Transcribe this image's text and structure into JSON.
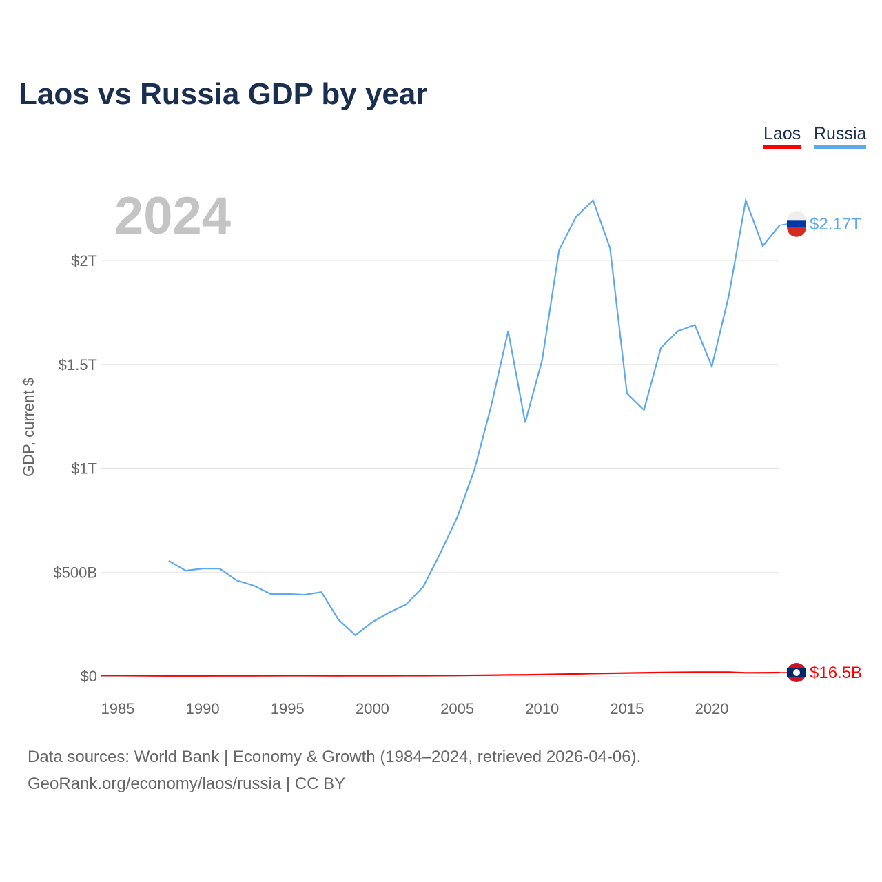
{
  "chart_data": {
    "type": "line",
    "title": "Laos vs Russia GDP by year",
    "year_label": "2024",
    "ylabel": "GDP, current $",
    "xlabel": "",
    "xlim": [
      1984,
      2024
    ],
    "ylim": [
      0,
      2.3
    ],
    "y_unit": "trillion USD",
    "x_ticks": [
      1985,
      1990,
      1995,
      2000,
      2005,
      2010,
      2015,
      2020
    ],
    "y_ticks": [
      {
        "value": 0,
        "label": "$0"
      },
      {
        "value": 0.5,
        "label": "$500B"
      },
      {
        "value": 1,
        "label": "$1T"
      },
      {
        "value": 1.5,
        "label": "$1.5T"
      },
      {
        "value": 2,
        "label": "$2T"
      }
    ],
    "grid": true,
    "legend": {
      "placement": "top-right",
      "items": [
        {
          "name": "Laos",
          "color": "#ff0000"
        },
        {
          "name": "Russia",
          "color": "#5ea8ec"
        }
      ]
    },
    "series": [
      {
        "name": "Laos",
        "color": "#ff0000",
        "end_label": "$16.5B",
        "flag": "laos-flag",
        "x": [
          1984,
          1985,
          1986,
          1987,
          1988,
          1989,
          1990,
          1991,
          1992,
          1993,
          1994,
          1995,
          1996,
          1997,
          1998,
          1999,
          2000,
          2001,
          2002,
          2003,
          2004,
          2005,
          2006,
          2007,
          2008,
          2009,
          2010,
          2011,
          2012,
          2013,
          2014,
          2015,
          2016,
          2017,
          2018,
          2019,
          2020,
          2021,
          2022,
          2023,
          2024
        ],
        "values": [
          0.0025,
          0.0026,
          0.0019,
          0.0013,
          0.0006,
          0.0007,
          0.0009,
          0.001,
          0.0012,
          0.0013,
          0.0015,
          0.0018,
          0.002,
          0.0017,
          0.0013,
          0.0015,
          0.0017,
          0.0017,
          0.0018,
          0.002,
          0.0024,
          0.0027,
          0.0035,
          0.0042,
          0.0054,
          0.0058,
          0.0073,
          0.0088,
          0.0102,
          0.012,
          0.0133,
          0.0144,
          0.0158,
          0.0171,
          0.0181,
          0.0187,
          0.0189,
          0.0188,
          0.0156,
          0.0158,
          0.0165
        ]
      },
      {
        "name": "Russia",
        "color": "#5ea8ec",
        "end_label": "$2.17T",
        "flag": "russia-flag",
        "x": [
          1988,
          1989,
          1990,
          1991,
          1992,
          1993,
          1994,
          1995,
          1996,
          1997,
          1998,
          1999,
          2000,
          2001,
          2002,
          2003,
          2004,
          2005,
          2006,
          2007,
          2008,
          2009,
          2010,
          2011,
          2012,
          2013,
          2014,
          2015,
          2016,
          2017,
          2018,
          2019,
          2020,
          2021,
          2022,
          2023,
          2024
        ],
        "values": [
          0.554,
          0.507,
          0.517,
          0.517,
          0.46,
          0.435,
          0.395,
          0.395,
          0.391,
          0.404,
          0.271,
          0.196,
          0.26,
          0.306,
          0.345,
          0.43,
          0.591,
          0.764,
          0.99,
          1.3,
          1.66,
          1.22,
          1.52,
          2.05,
          2.21,
          2.29,
          2.06,
          1.36,
          1.28,
          1.58,
          1.66,
          1.69,
          1.49,
          1.83,
          2.29,
          2.07,
          2.17
        ]
      }
    ]
  },
  "footer": {
    "line1": "Data sources: World Bank | Economy & Growth (1984–2024, retrieved 2026-04-06).",
    "line2": "GeoRank.org/economy/laos/russia | CC BY"
  }
}
